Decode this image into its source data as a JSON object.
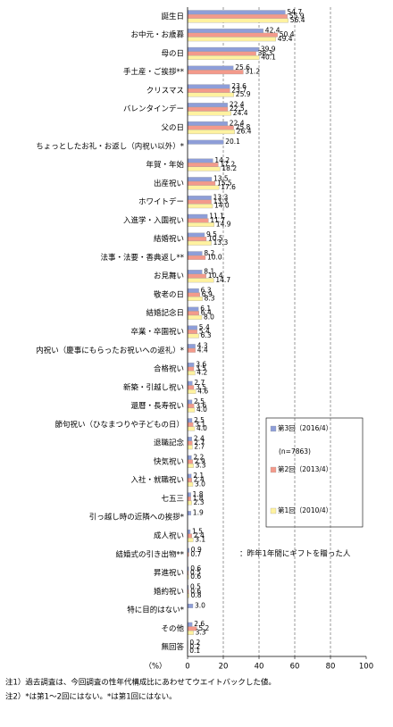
{
  "chart_data": {
    "type": "bar",
    "orientation": "horizontal",
    "categories": [
      "誕生日",
      "お中元・お歳暮",
      "母の日",
      "手土産・ご挨拶**",
      "クリスマス",
      "バレンタインデー",
      "父の日",
      "ちょっとしたお礼・お返し（内祝い以外）*",
      "年賀・年始",
      "出産祝い",
      "ホワイトデー",
      "入進学・入園祝い",
      "結婚祝い",
      "法事・法要・香典返し**",
      "お見舞い",
      "敬老の日",
      "結婚記念日",
      "卒業・卒園祝い",
      "内祝い（慶事にもらったお祝いへの返礼）*",
      "合格祝い",
      "新築・引越し祝い",
      "還暦・長寿祝い",
      "節句祝い（ひなまつりや子どもの日）",
      "退職記念",
      "快気祝い",
      "入社・就職祝い",
      "七五三",
      "引っ越し時の近隣への挨拶*",
      "成人祝い",
      "結婚式の引き出物**",
      "昇進祝い",
      "婚約祝い",
      "特に目的はない*",
      "その他",
      "無回答"
    ],
    "series": [
      {
        "name": "第3回（2016/4）",
        "color": "#8e9ed8",
        "values": [
          54.7,
          42.4,
          39.9,
          25.6,
          23.6,
          22.4,
          22.4,
          20.1,
          14.2,
          13.5,
          13.3,
          11.1,
          9.5,
          8.2,
          8.1,
          6.3,
          6.1,
          5.4,
          4.3,
          3.6,
          2.7,
          2.5,
          2.5,
          2.4,
          2.2,
          2.1,
          1.8,
          1.9,
          1.5,
          0.9,
          0.6,
          0.5,
          3.0,
          2.6,
          0.2
        ],
        "value_labels": [
          "54.7",
          "42.4",
          "39.9",
          "25.6",
          "23.6",
          "22.4",
          "22.4",
          "20.1",
          "14.2",
          "13.5",
          "13.3",
          "11.1",
          "9.5",
          "8.2",
          "8.1",
          "6.3",
          "6.1",
          "5.4",
          "4.3",
          "3.6",
          "2.7",
          "2.5",
          "2.5",
          "2.4",
          "2.2",
          "2.1",
          "1.8",
          "1.9",
          "1.5",
          "0.9",
          "0.6",
          "0.5",
          "3.0",
          "2.6",
          "0.2"
        ]
      },
      {
        "name": "第2回（2013/4）",
        "color": "#f39a8b",
        "values": [
          55.9,
          50.4,
          38.3,
          31.2,
          23.7,
          22.5,
          25.8,
          null,
          17.2,
          15.5,
          13.3,
          11.7,
          10.5,
          10.0,
          10.4,
          6.9,
          6.4,
          5.4,
          4.4,
          3.5,
          3.5,
          3.6,
          3.1,
          2.7,
          2.9,
          2.4,
          1.8,
          null,
          2.4,
          0.7,
          0.5,
          0.6,
          null,
          5.2,
          0.2
        ],
        "value_labels": [
          "55.9",
          "50.4",
          "38.3",
          "31.2",
          "23.7",
          "22.5",
          "25.8",
          null,
          "17.2",
          "15.5",
          "13.3",
          "11.7",
          "10.5",
          "10.0",
          "10.4",
          "6.9",
          "6.4",
          "5.4",
          "4.4",
          "3.5",
          "3.5",
          "3.6",
          "3.1",
          "2.7",
          "2.9",
          "2.4",
          "1.8",
          null,
          "2.4",
          "0.7",
          "0.5",
          "0.6",
          null,
          "5.2",
          "0.2"
        ]
      },
      {
        "name": "第1回（2010/4）",
        "color": "#fff2a0",
        "values": [
          56.4,
          49.4,
          40.1,
          null,
          25.9,
          24.4,
          26.4,
          null,
          18.2,
          17.6,
          14.0,
          14.9,
          13.3,
          null,
          14.7,
          8.3,
          8.0,
          6.3,
          null,
          4.2,
          4.6,
          4.0,
          4.0,
          2.7,
          3.3,
          3.0,
          2.3,
          null,
          3.1,
          null,
          0.6,
          0.8,
          null,
          3.3,
          0.1
        ],
        "value_labels": [
          "56.4",
          "49.4",
          "40.1",
          null,
          "25.9",
          "24.4",
          "26.4",
          null,
          "18.2",
          "17.6",
          "14.0",
          "14.9",
          "13.3",
          null,
          "14.7",
          "8.3",
          "8.0",
          "6.3",
          null,
          "4.2",
          "4.6",
          "4.0",
          "4.0",
          "2.7",
          "3.3",
          "3.0",
          "2.3",
          null,
          "3.1",
          null,
          "0.6",
          "0.8",
          null,
          "3.3",
          "0.1"
        ]
      }
    ],
    "legend_note": "(n=7863)",
    "annotation": "：昨年1年間にギフトを贈った人",
    "xlabel": "（%）",
    "xlim": [
      0,
      100
    ],
    "xticks": [
      0,
      20,
      40,
      60,
      80,
      100
    ],
    "grid": true,
    "footnotes": [
      "注1）過去調査は、今回調査の性年代構成比にあわせてウエイトバックした値。",
      "注2）*は第1～2回にはない。*は第1回にはない。"
    ]
  }
}
